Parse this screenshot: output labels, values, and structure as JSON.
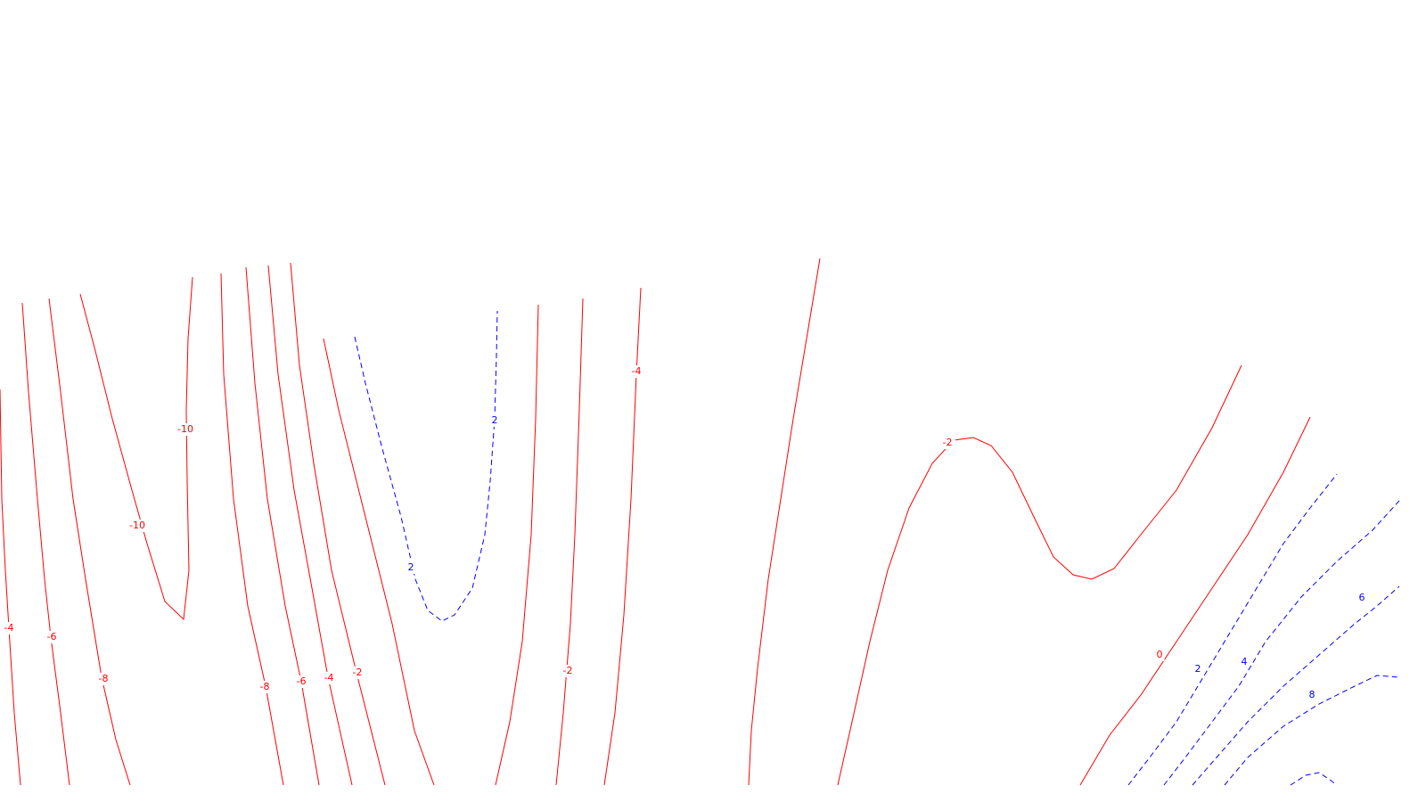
{
  "chart_data": {
    "type": "contour",
    "title": "",
    "xlabel": "",
    "ylabel": "",
    "grid": false,
    "legend": "none",
    "colors": {
      "negative": "#ff0000",
      "positive": "#0000ff",
      "background": "#ffffff"
    },
    "line_styles": {
      "negative": "solid",
      "positive": "dashed"
    },
    "levels": [
      -10,
      -8,
      -6,
      -4,
      -2,
      0,
      2,
      4,
      6,
      8
    ],
    "contour_labels": [
      {
        "value": -10,
        "text": "-10",
        "key": "a"
      },
      {
        "value": -10,
        "text": "-10",
        "key": "b"
      },
      {
        "value": -4,
        "text": "-4",
        "key": "c"
      },
      {
        "value": -6,
        "text": "-6",
        "key": "d"
      },
      {
        "value": -8,
        "text": "-8",
        "key": "e"
      },
      {
        "value": -8,
        "text": "-8",
        "key": "f"
      },
      {
        "value": -6,
        "text": "-6",
        "key": "g"
      },
      {
        "value": -4,
        "text": "-4",
        "key": "h"
      },
      {
        "value": -2,
        "text": "-2",
        "key": "i"
      },
      {
        "value": 2,
        "text": "2",
        "key": "j"
      },
      {
        "value": 2,
        "text": "2",
        "key": "k"
      },
      {
        "value": -4,
        "text": "-4",
        "key": "l"
      },
      {
        "value": -2,
        "text": "-2",
        "key": "m"
      },
      {
        "value": -2,
        "text": "-2",
        "key": "n"
      },
      {
        "value": 0,
        "text": "0",
        "key": "o"
      },
      {
        "value": 2,
        "text": "2",
        "key": "p"
      },
      {
        "value": 4,
        "text": "4",
        "key": "q"
      },
      {
        "value": 6,
        "text": "6",
        "key": "r"
      },
      {
        "value": 8,
        "text": "8",
        "key": "s"
      }
    ]
  }
}
